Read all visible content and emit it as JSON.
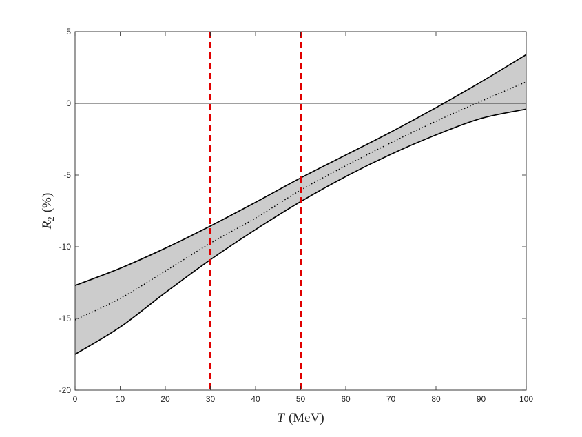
{
  "chart_data": {
    "type": "area",
    "xlabel_var": "T",
    "xlabel_unit": "(MeV)",
    "ylabel_var": "R",
    "ylabel_sub": "2",
    "ylabel_unit": "(%)",
    "xlim": [
      0,
      100
    ],
    "ylim": [
      -20,
      5
    ],
    "xticks": [
      0,
      10,
      20,
      30,
      40,
      50,
      60,
      70,
      80,
      90,
      100
    ],
    "yticks": [
      -20,
      -15,
      -10,
      -5,
      0,
      5
    ],
    "grid": false,
    "x": [
      0,
      10,
      20,
      30,
      40,
      50,
      60,
      70,
      80,
      90,
      100
    ],
    "series": [
      {
        "role": "upper",
        "style": "solid",
        "color": "#000000",
        "values": [
          -12.7,
          -11.5,
          -10.1,
          -8.55,
          -6.9,
          -5.2,
          -3.6,
          -2.0,
          -0.3,
          1.5,
          3.4
        ]
      },
      {
        "role": "central",
        "style": "dotted",
        "color": "#000000",
        "values": [
          -15.1,
          -13.6,
          -11.7,
          -9.75,
          -8.0,
          -6.05,
          -4.35,
          -2.75,
          -1.25,
          0.15,
          1.5
        ]
      },
      {
        "role": "lower",
        "style": "solid",
        "color": "#000000",
        "values": [
          -17.5,
          -15.6,
          -13.2,
          -10.9,
          -8.8,
          -6.85,
          -5.1,
          -3.55,
          -2.2,
          -1.05,
          -0.4
        ]
      }
    ],
    "band_fill": "#cccccc",
    "reference_lines": [
      {
        "orientation": "horizontal",
        "y": 0,
        "color": "#000000",
        "style": "solid"
      },
      {
        "orientation": "vertical",
        "x": 30,
        "color": "#e00000",
        "style": "dashed"
      },
      {
        "orientation": "vertical",
        "x": 50,
        "color": "#e00000",
        "style": "dashed"
      }
    ]
  }
}
